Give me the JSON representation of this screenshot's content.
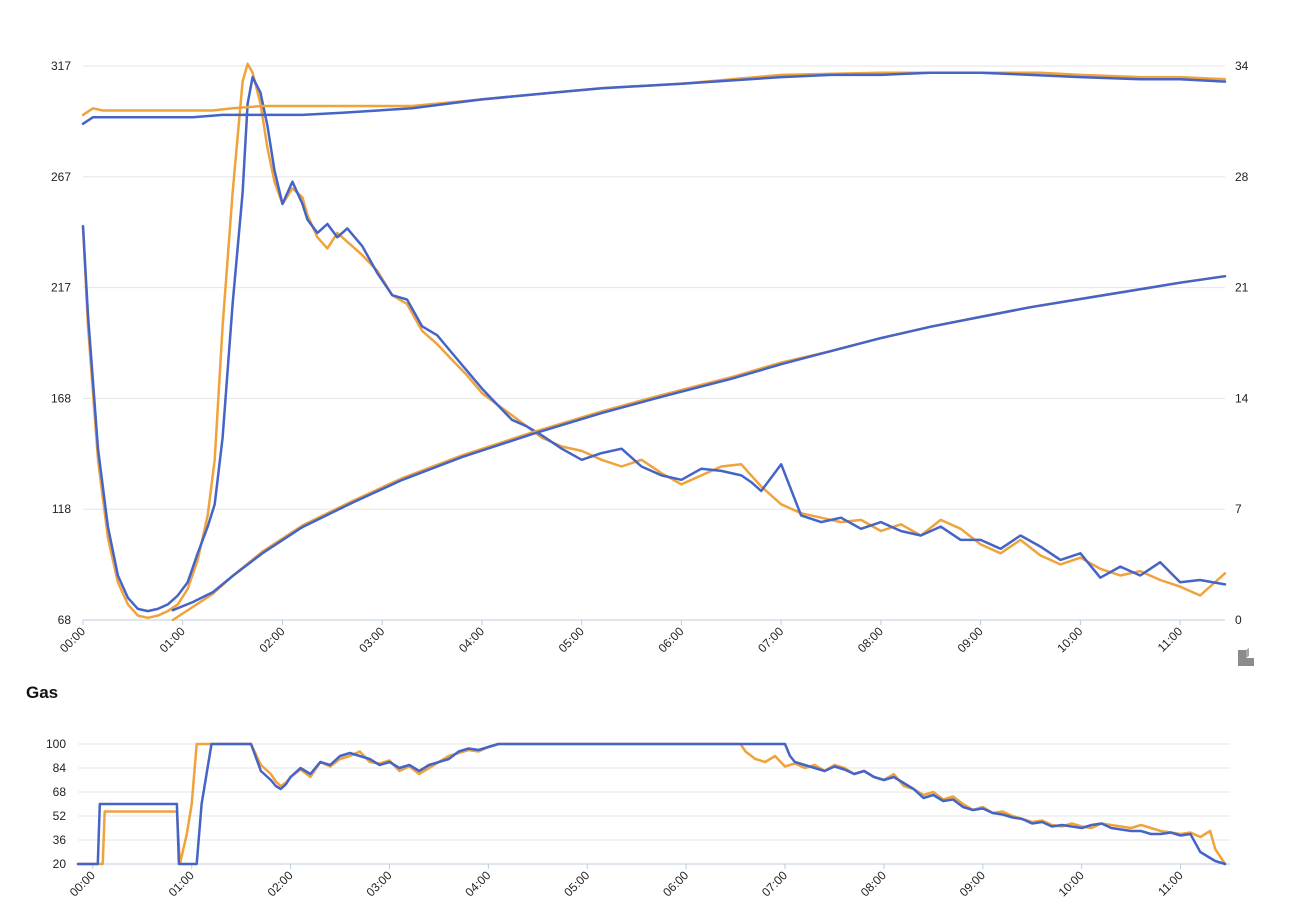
{
  "colors": {
    "orange": "#F0A23B",
    "blue": "#4464C8",
    "grid": "#E6E6E6",
    "axis": "#BFCCDC",
    "logo": "#8C8C8C"
  },
  "logo": {
    "icon": "app-logo-icon"
  },
  "chart_data": [
    {
      "type": "line",
      "title": "",
      "x_unit": "hours",
      "xticks": [
        "00:00",
        "01:00",
        "02:00",
        "03:00",
        "04:00",
        "05:00",
        "06:00",
        "07:00",
        "08:00",
        "09:00",
        "10:00",
        "11:00"
      ],
      "xlim": [
        0,
        11.45
      ],
      "ylim_left": [
        68,
        317
      ],
      "yticks_left": [
        "317",
        "267",
        "217",
        "168",
        "118",
        "68"
      ],
      "ylim_right": [
        0,
        34
      ],
      "yticks_right": [
        "34",
        "28",
        "21",
        "14",
        "7",
        "0"
      ],
      "grid": true,
      "series": [
        {
          "color": "#F0A23B",
          "axis": "left",
          "x": [
            0,
            0.05,
            0.15,
            0.25,
            0.35,
            0.45,
            0.55,
            0.65,
            0.75,
            0.85,
            0.95,
            1.05,
            1.15,
            1.25,
            1.32,
            1.4,
            1.5,
            1.6,
            1.65,
            1.7,
            1.78,
            1.85,
            1.92,
            2.0,
            2.1,
            2.2,
            2.25,
            2.35,
            2.45,
            2.55,
            2.65,
            2.8,
            2.95,
            3.1,
            3.25,
            3.4,
            3.55,
            3.7,
            3.85,
            4.0,
            4.15,
            4.3,
            4.45,
            4.6,
            4.8,
            5.0,
            5.2,
            5.4,
            5.6,
            5.8,
            6.0,
            6.2,
            6.4,
            6.6,
            6.7,
            6.8,
            7.0,
            7.2,
            7.4,
            7.6,
            7.8,
            8.0,
            8.2,
            8.4,
            8.6,
            8.8,
            9.0,
            9.2,
            9.4,
            9.6,
            9.8,
            10.0,
            10.2,
            10.4,
            10.6,
            10.8,
            11.0,
            11.2,
            11.45
          ],
          "y": [
            245,
            200,
            140,
            105,
            85,
            75,
            70,
            69,
            70,
            72,
            75,
            82,
            95,
            115,
            140,
            200,
            260,
            310,
            318,
            314,
            300,
            280,
            265,
            255,
            262,
            258,
            250,
            240,
            235,
            242,
            238,
            232,
            225,
            214,
            210,
            198,
            192,
            185,
            178,
            170,
            165,
            160,
            155,
            150,
            146,
            144,
            140,
            137,
            140,
            134,
            129,
            133,
            137,
            138,
            133,
            128,
            120,
            116,
            114,
            112,
            113,
            108,
            111,
            106,
            113,
            109,
            102,
            98,
            104,
            97,
            93,
            96,
            91,
            88,
            90,
            86,
            83,
            79,
            89
          ]
        },
        {
          "color": "#4464C8",
          "axis": "left",
          "x": [
            0,
            0.05,
            0.15,
            0.25,
            0.35,
            0.45,
            0.55,
            0.65,
            0.75,
            0.85,
            0.95,
            1.05,
            1.15,
            1.25,
            1.32,
            1.4,
            1.5,
            1.6,
            1.65,
            1.7,
            1.78,
            1.85,
            1.92,
            2.0,
            2.1,
            2.2,
            2.25,
            2.35,
            2.45,
            2.55,
            2.65,
            2.8,
            2.95,
            3.1,
            3.25,
            3.4,
            3.55,
            3.7,
            3.85,
            4.0,
            4.15,
            4.3,
            4.45,
            4.6,
            4.8,
            5.0,
            5.2,
            5.4,
            5.6,
            5.8,
            6.0,
            6.2,
            6.4,
            6.6,
            6.7,
            6.8,
            7.0,
            7.2,
            7.4,
            7.6,
            7.8,
            8.0,
            8.2,
            8.4,
            8.6,
            8.8,
            9.0,
            9.2,
            9.4,
            9.6,
            9.8,
            10.0,
            10.2,
            10.4,
            10.6,
            10.8,
            11.0,
            11.2,
            11.45
          ],
          "y": [
            245,
            205,
            145,
            110,
            88,
            78,
            73,
            72,
            73,
            75,
            79,
            85,
            98,
            110,
            120,
            150,
            210,
            260,
            300,
            312,
            305,
            290,
            270,
            255,
            265,
            255,
            248,
            242,
            246,
            240,
            244,
            236,
            224,
            214,
            212,
            200,
            196,
            188,
            180,
            172,
            165,
            158,
            155,
            151,
            145,
            140,
            143,
            145,
            137,
            133,
            131,
            136,
            135,
            133,
            130,
            126,
            138,
            115,
            112,
            114,
            109,
            112,
            108,
            106,
            110,
            104,
            104,
            100,
            106,
            101,
            95,
            98,
            87,
            92,
            88,
            94,
            85,
            86,
            84
          ]
        },
        {
          "color": "#F0A23B",
          "axis": "left",
          "x": [
            0,
            0.1,
            0.2,
            0.4,
            0.8,
            1.1,
            1.3,
            1.5,
            1.8,
            2.5,
            3.3,
            4.0,
            4.7,
            5.2,
            6.0,
            7.0,
            8.0,
            9.0,
            9.6,
            10.0,
            10.6,
            11.0,
            11.45
          ],
          "y": [
            295,
            298,
            297,
            297,
            297,
            297,
            297,
            298,
            299,
            299,
            299,
            302,
            305,
            307,
            309,
            313,
            314,
            314,
            314,
            313,
            312,
            312,
            311
          ]
        },
        {
          "color": "#4464C8",
          "axis": "left",
          "x": [
            0,
            0.1,
            0.3,
            0.8,
            1.1,
            1.4,
            1.8,
            2.2,
            2.6,
            3.3,
            4.0,
            4.7,
            5.2,
            6.0,
            7.0,
            7.5,
            8.0,
            8.5,
            9.0,
            9.5,
            10.0,
            10.6,
            11.0,
            11.45
          ],
          "y": [
            291,
            294,
            294,
            294,
            294,
            295,
            295,
            295,
            296,
            298,
            302,
            305,
            307,
            309,
            312,
            313,
            313,
            314,
            314,
            313,
            312,
            311,
            311,
            310
          ]
        },
        {
          "color": "#F0A23B",
          "axis": "right",
          "x": [
            0.9,
            1.1,
            1.3,
            1.5,
            1.8,
            2.2,
            2.7,
            3.2,
            3.8,
            4.5,
            5.2,
            5.8,
            6.5,
            7.0,
            7.5,
            8.0,
            8.5,
            9.0,
            9.5,
            10.0,
            10.5,
            11.0,
            11.45
          ],
          "y": [
            0,
            0.8,
            1.6,
            2.7,
            4.2,
            5.8,
            7.3,
            8.7,
            10.1,
            11.5,
            12.8,
            13.8,
            14.9,
            15.8,
            16.5,
            17.3,
            18.0,
            18.6,
            19.2,
            19.7,
            20.2,
            20.7,
            21.1
          ]
        },
        {
          "color": "#4464C8",
          "axis": "right",
          "x": [
            0.9,
            1.1,
            1.3,
            1.5,
            1.8,
            2.2,
            2.7,
            3.2,
            3.8,
            4.5,
            5.2,
            5.8,
            6.5,
            7.0,
            7.5,
            8.0,
            8.5,
            9.0,
            9.5,
            10.0,
            10.5,
            11.0,
            11.45
          ],
          "y": [
            0.6,
            1.1,
            1.7,
            2.7,
            4.1,
            5.7,
            7.2,
            8.6,
            10.0,
            11.4,
            12.7,
            13.7,
            14.8,
            15.7,
            16.5,
            17.3,
            18.0,
            18.6,
            19.2,
            19.7,
            20.2,
            20.7,
            21.1
          ]
        }
      ]
    },
    {
      "type": "line",
      "title": "Gas",
      "x_unit": "hours",
      "xticks": [
        "00:00",
        "01:00",
        "02:00",
        "03:00",
        "04:00",
        "05:00",
        "06:00",
        "07:00",
        "08:00",
        "09:00",
        "10:00",
        "11:00"
      ],
      "xlim": [
        -0.15,
        11.5
      ],
      "ylim": [
        20,
        100
      ],
      "yticks": [
        "100",
        "84",
        "68",
        "52",
        "36",
        "20"
      ],
      "grid": true,
      "series": [
        {
          "color": "#F0A23B",
          "x": [
            -0.15,
            0.1,
            0.12,
            0.5,
            0.85,
            0.88,
            0.95,
            1.0,
            1.05,
            1.2,
            1.6,
            1.7,
            1.8,
            1.85,
            1.9,
            1.95,
            2.0,
            2.1,
            2.2,
            2.3,
            2.4,
            2.5,
            2.6,
            2.7,
            2.8,
            2.9,
            3.0,
            3.1,
            3.2,
            3.3,
            3.4,
            3.5,
            3.6,
            3.7,
            3.8,
            3.9,
            4.0,
            4.1,
            5.0,
            6.0,
            6.55,
            6.6,
            6.7,
            6.8,
            6.9,
            7.0,
            7.1,
            7.2,
            7.3,
            7.4,
            7.5,
            7.6,
            7.7,
            7.8,
            7.9,
            8.0,
            8.1,
            8.2,
            8.3,
            8.4,
            8.5,
            8.6,
            8.7,
            8.8,
            8.9,
            9.0,
            9.1,
            9.2,
            9.3,
            9.4,
            9.5,
            9.6,
            9.7,
            9.8,
            9.9,
            10.0,
            10.1,
            10.2,
            10.3,
            10.4,
            10.5,
            10.6,
            10.7,
            10.8,
            10.9,
            11.0,
            11.1,
            11.2,
            11.3,
            11.35,
            11.45
          ],
          "y": [
            20,
            20,
            55,
            55,
            55,
            20,
            40,
            60,
            100,
            100,
            100,
            86,
            80,
            75,
            72,
            74,
            78,
            83,
            78,
            88,
            85,
            90,
            92,
            95,
            88,
            87,
            89,
            82,
            85,
            80,
            84,
            88,
            92,
            94,
            96,
            95,
            98,
            100,
            100,
            100,
            100,
            95,
            90,
            88,
            92,
            85,
            87,
            84,
            86,
            82,
            86,
            84,
            80,
            82,
            78,
            76,
            80,
            72,
            70,
            66,
            68,
            63,
            65,
            60,
            56,
            58,
            54,
            55,
            52,
            50,
            48,
            49,
            46,
            45,
            47,
            45,
            44,
            47,
            46,
            45,
            44,
            46,
            44,
            42,
            41,
            40,
            41,
            38,
            42,
            30,
            20
          ]
        },
        {
          "color": "#4464C8",
          "x": [
            -0.15,
            0.05,
            0.07,
            0.4,
            0.85,
            0.87,
            1.05,
            1.1,
            1.2,
            1.3,
            1.6,
            1.7,
            1.8,
            1.85,
            1.9,
            1.95,
            2.0,
            2.1,
            2.2,
            2.3,
            2.4,
            2.5,
            2.6,
            2.7,
            2.8,
            2.9,
            3.0,
            3.1,
            3.2,
            3.3,
            3.4,
            3.5,
            3.6,
            3.7,
            3.8,
            3.9,
            4.0,
            4.1,
            5.0,
            6.0,
            7.0,
            7.05,
            7.1,
            7.2,
            7.3,
            7.4,
            7.5,
            7.6,
            7.7,
            7.8,
            7.9,
            8.0,
            8.1,
            8.2,
            8.3,
            8.4,
            8.5,
            8.6,
            8.7,
            8.8,
            8.9,
            9.0,
            9.1,
            9.2,
            9.3,
            9.4,
            9.5,
            9.6,
            9.7,
            9.8,
            9.9,
            10.0,
            10.1,
            10.2,
            10.3,
            10.4,
            10.5,
            10.6,
            10.7,
            10.8,
            10.9,
            11.0,
            11.1,
            11.2,
            11.3,
            11.35,
            11.45
          ],
          "y": [
            20,
            20,
            60,
            60,
            60,
            20,
            20,
            60,
            100,
            100,
            100,
            82,
            76,
            72,
            70,
            73,
            78,
            84,
            80,
            88,
            86,
            92,
            94,
            92,
            90,
            86,
            88,
            84,
            86,
            82,
            86,
            88,
            90,
            95,
            97,
            96,
            98,
            100,
            100,
            100,
            100,
            92,
            88,
            86,
            84,
            82,
            85,
            83,
            80,
            82,
            78,
            76,
            78,
            74,
            70,
            64,
            66,
            62,
            63,
            58,
            56,
            57,
            54,
            53,
            51,
            50,
            47,
            48,
            45,
            46,
            45,
            44,
            46,
            47,
            44,
            43,
            42,
            42,
            40,
            40,
            41,
            39,
            40,
            28,
            24,
            22,
            20
          ]
        }
      ]
    }
  ]
}
